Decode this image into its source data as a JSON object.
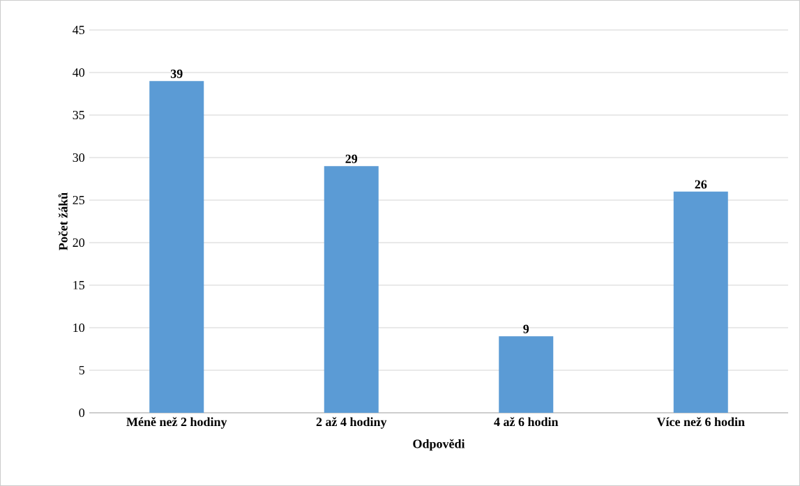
{
  "chart_data": {
    "type": "bar",
    "xlabel": "Odpovědi",
    "ylabel": "Počet žáků",
    "categories": [
      "Méně než 2 hodiny",
      "2 až 4 hodiny",
      "4 až 6 hodin",
      "Více než 6 hodin"
    ],
    "values": [
      39,
      29,
      9,
      26
    ],
    "color": "#5b9bd5",
    "ylim": [
      0,
      45
    ],
    "yticks": [
      0,
      5,
      10,
      15,
      20,
      25,
      30,
      35,
      40,
      45
    ],
    "grid": "y",
    "data_labels": true
  }
}
